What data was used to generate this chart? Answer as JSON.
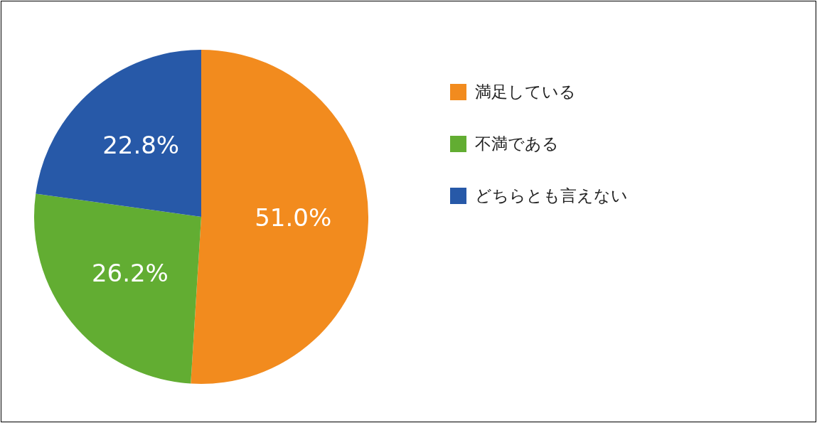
{
  "chart_data": {
    "type": "pie",
    "categories": [
      "満足している",
      "不満である",
      "どちらとも言えない"
    ],
    "values": [
      51.0,
      26.2,
      22.8
    ],
    "colors": [
      "#f28b1e",
      "#62ad32",
      "#2759a8"
    ],
    "value_labels": [
      "51.0%",
      "26.2%",
      "22.8%"
    ],
    "legend": "right"
  }
}
